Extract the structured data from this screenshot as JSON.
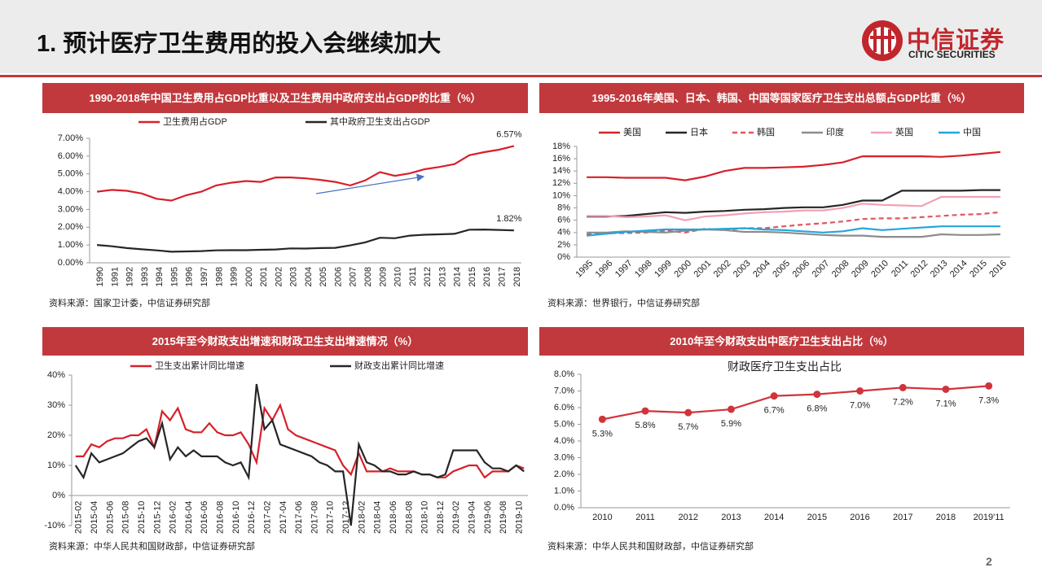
{
  "header": {
    "title": "1. 预计医疗卫生费用的投入会继续加大",
    "logo_cn": "中信证券",
    "logo_en": "CITIC SECURITIES"
  },
  "page_number": 2,
  "chart_data": [
    {
      "type": "line",
      "title": "1990-2018年中国卫生费用占GDP比重以及卫生费用中政府支出占GDP的比重（%）",
      "source": "资料来源：国家卫计委，中信证券研究部",
      "categories": [
        "1990",
        "1991",
        "1992",
        "1993",
        "1994",
        "1995",
        "1996",
        "1997",
        "1998",
        "1999",
        "2000",
        "2001",
        "2002",
        "2003",
        "2004",
        "2005",
        "2006",
        "2007",
        "2008",
        "2009",
        "2010",
        "2011",
        "2012",
        "2013",
        "2014",
        "2015",
        "2016",
        "2017",
        "2018"
      ],
      "series": [
        {
          "name": "卫生费用占GDP",
          "color": "#d7202a",
          "values": [
            4.0,
            4.1,
            4.05,
            3.9,
            3.6,
            3.5,
            3.8,
            4.0,
            4.35,
            4.5,
            4.6,
            4.55,
            4.8,
            4.8,
            4.75,
            4.66,
            4.55,
            4.35,
            4.63,
            5.1,
            4.89,
            5.03,
            5.26,
            5.39,
            5.55,
            6.05,
            6.22,
            6.36,
            6.57
          ],
          "value_labels": [
            null,
            null,
            null,
            null,
            null,
            null,
            null,
            null,
            null,
            null,
            null,
            null,
            null,
            null,
            null,
            null,
            null,
            null,
            null,
            null,
            null,
            null,
            null,
            null,
            null,
            null,
            null,
            null,
            "6.57%"
          ]
        },
        {
          "name": "其中政府卫生支出占GDP",
          "color": "#262626",
          "values": [
            1.0,
            0.93,
            0.83,
            0.76,
            0.7,
            0.62,
            0.64,
            0.66,
            0.7,
            0.71,
            0.71,
            0.73,
            0.75,
            0.81,
            0.8,
            0.83,
            0.84,
            0.98,
            1.15,
            1.41,
            1.38,
            1.53,
            1.58,
            1.6,
            1.63,
            1.86,
            1.87,
            1.85,
            1.82
          ],
          "value_labels": [
            null,
            null,
            null,
            null,
            null,
            null,
            null,
            null,
            null,
            null,
            null,
            null,
            null,
            null,
            null,
            null,
            null,
            null,
            null,
            null,
            null,
            null,
            null,
            null,
            null,
            null,
            null,
            null,
            "1.82%"
          ]
        }
      ],
      "ylim": [
        0,
        7
      ],
      "yticks": [
        {
          "value": 0,
          "label": "0.00%"
        },
        {
          "value": 1,
          "label": "1.00%"
        },
        {
          "value": 2,
          "label": "2.00%"
        },
        {
          "value": 3,
          "label": "3.00%"
        },
        {
          "value": 4,
          "label": "4.00%"
        },
        {
          "value": 5,
          "label": "5.00%"
        },
        {
          "value": 6,
          "label": "6.00%"
        },
        {
          "value": 7,
          "label": "7.00%"
        }
      ]
    },
    {
      "type": "line",
      "title": "1995-2016年美国、日本、韩国、中国等国家医疗卫生支出总额占GDP比重（%）",
      "source": "资料来源：世界银行，中信证券研究部",
      "categories": [
        "1995",
        "1996",
        "1997",
        "1998",
        "1999",
        "2000",
        "2001",
        "2002",
        "2003",
        "2004",
        "2005",
        "2006",
        "2007",
        "2008",
        "2009",
        "2010",
        "2011",
        "2012",
        "2013",
        "2014",
        "2015",
        "2016"
      ],
      "series": [
        {
          "name": "美国",
          "color": "#d7202a",
          "values": [
            13.0,
            13.0,
            12.9,
            12.9,
            12.9,
            12.5,
            13.1,
            14.0,
            14.5,
            14.5,
            14.6,
            14.7,
            15.0,
            15.4,
            16.4,
            16.4,
            16.4,
            16.4,
            16.3,
            16.5,
            16.8,
            17.1
          ]
        },
        {
          "name": "日本",
          "color": "#262626",
          "values": [
            6.6,
            6.6,
            6.7,
            7.0,
            7.3,
            7.2,
            7.4,
            7.5,
            7.7,
            7.8,
            8.0,
            8.1,
            8.1,
            8.5,
            9.2,
            9.2,
            10.8,
            10.8,
            10.8,
            10.8,
            10.9,
            10.9
          ]
        },
        {
          "name": "韩国",
          "color": "#e0575c",
          "dash": true,
          "values": [
            3.7,
            3.9,
            3.9,
            4.0,
            4.3,
            4.0,
            4.6,
            4.4,
            4.7,
            4.7,
            5.0,
            5.3,
            5.5,
            5.8,
            6.2,
            6.3,
            6.3,
            6.5,
            6.7,
            6.9,
            7.0,
            7.3
          ]
        },
        {
          "name": "印度",
          "color": "#8c8c8c",
          "values": [
            4.0,
            4.0,
            4.2,
            4.1,
            4.0,
            4.3,
            4.5,
            4.4,
            4.1,
            4.1,
            4.0,
            3.8,
            3.6,
            3.5,
            3.5,
            3.3,
            3.3,
            3.3,
            3.7,
            3.6,
            3.6,
            3.7
          ]
        },
        {
          "name": "英国",
          "color": "#f2a0b3",
          "values": [
            6.7,
            6.7,
            6.5,
            6.6,
            6.8,
            6.0,
            6.6,
            6.8,
            7.1,
            7.3,
            7.4,
            7.6,
            7.6,
            8.0,
            8.7,
            8.5,
            8.4,
            8.3,
            9.8,
            9.8,
            9.8,
            9.8
          ]
        },
        {
          "name": "中国",
          "color": "#22a5dc",
          "values": [
            3.5,
            3.8,
            4.1,
            4.3,
            4.5,
            4.5,
            4.5,
            4.6,
            4.7,
            4.5,
            4.4,
            4.2,
            4.0,
            4.2,
            4.7,
            4.4,
            4.6,
            4.8,
            5.0,
            5.0,
            5.0,
            5.0
          ]
        }
      ],
      "ylim": [
        0,
        18
      ],
      "yticks": [
        {
          "value": 0,
          "label": "0%"
        },
        {
          "value": 2,
          "label": "2%"
        },
        {
          "value": 4,
          "label": "4%"
        },
        {
          "value": 6,
          "label": "6%"
        },
        {
          "value": 8,
          "label": "8%"
        },
        {
          "value": 10,
          "label": "10%"
        },
        {
          "value": 12,
          "label": "12%"
        },
        {
          "value": 14,
          "label": "14%"
        },
        {
          "value": 16,
          "label": "16%"
        },
        {
          "value": 18,
          "label": "18%"
        }
      ]
    },
    {
      "type": "line",
      "title": "2015年至今财政支出增速和财政卫生支出增速情况（%）",
      "source": "资料来源：中华人民共和国财政部，中信证券研究部",
      "categories": [
        "2015-02",
        null,
        "2015-04",
        null,
        "2015-06",
        null,
        "2015-08",
        null,
        "2015-10",
        null,
        "2015-12",
        null,
        "2016-02",
        null,
        "2016-04",
        null,
        "2016-06",
        null,
        "2016-08",
        null,
        "2016-10",
        null,
        "2016-12",
        null,
        "2017-02",
        null,
        "2017-04",
        null,
        "2017-06",
        null,
        "2017-08",
        null,
        "2017-10",
        null,
        "2017-12",
        null,
        "2018-02",
        null,
        "2018-04",
        null,
        "2018-06",
        null,
        "2018-08",
        null,
        "2018-10",
        null,
        "2018-12",
        null,
        "2019-02",
        null,
        "2019-04",
        null,
        "2019-06",
        null,
        "2019-08",
        null,
        "2019-10",
        null
      ],
      "series": [
        {
          "name": "卫生支出累计同比增速",
          "color": "#d7202a",
          "values": [
            13,
            13,
            17,
            16,
            18,
            19,
            19,
            20,
            20,
            22,
            16,
            28,
            25,
            29,
            22,
            21,
            21,
            24,
            21,
            20,
            20,
            21,
            17,
            11,
            29,
            25,
            30,
            22,
            20,
            19,
            18,
            17,
            16,
            15,
            10,
            7,
            14,
            8,
            8,
            8,
            9,
            8,
            8,
            8,
            7,
            7,
            6,
            6,
            8,
            9,
            10,
            10,
            6,
            8,
            8,
            8,
            10,
            9
          ]
        },
        {
          "name": "财政支出累计同比增速",
          "color": "#262626",
          "values": [
            10,
            6,
            14,
            11,
            12,
            13,
            14,
            16,
            18,
            19,
            16,
            24,
            12,
            16,
            13,
            15,
            13,
            13,
            13,
            11,
            10,
            11,
            6,
            37,
            22,
            25,
            17,
            16,
            15,
            14,
            13,
            11,
            10,
            8,
            8,
            -10,
            17,
            11,
            10,
            8,
            8,
            7,
            7,
            8,
            7,
            7,
            6,
            7,
            15,
            15,
            15,
            15,
            11,
            9,
            9,
            8,
            10,
            8
          ]
        }
      ],
      "ylim": [
        -10,
        40
      ],
      "yticks": [
        {
          "value": -10,
          "label": "-10%"
        },
        {
          "value": 0,
          "label": "0%"
        },
        {
          "value": 10,
          "label": "10%"
        },
        {
          "value": 20,
          "label": "20%"
        },
        {
          "value": 30,
          "label": "30%"
        },
        {
          "value": 40,
          "label": "40%"
        }
      ]
    },
    {
      "type": "line",
      "title": "2010年至今财政支出中医疗卫生支出占比（%）",
      "markers": true,
      "source": "资料来源：中华人民共和国财政部，中信证券研究部",
      "categories": [
        "2010",
        "2011",
        "2012",
        "2013",
        "2014",
        "2015",
        "2016",
        "2017",
        "2018",
        "2019'11"
      ],
      "series": [
        {
          "name": "财政医疗卫生支出占比",
          "color": "#d0343a",
          "values": [
            5.3,
            5.8,
            5.7,
            5.9,
            6.7,
            6.8,
            7.0,
            7.2,
            7.1,
            7.3
          ],
          "value_labels": [
            "5.3%",
            "5.8%",
            "5.7%",
            "5.9%",
            "6.7%",
            "6.8%",
            "7.0%",
            "7.2%",
            "7.1%",
            "7.3%"
          ]
        }
      ],
      "ylim": [
        0,
        8
      ],
      "yticks": [
        {
          "value": 0,
          "label": "0.0%"
        },
        {
          "value": 1,
          "label": "1.0%"
        },
        {
          "value": 2,
          "label": "2.0%"
        },
        {
          "value": 3,
          "label": "3.0%"
        },
        {
          "value": 4,
          "label": "4.0%"
        },
        {
          "value": 5,
          "label": "5.0%"
        },
        {
          "value": 6,
          "label": "6.0%"
        },
        {
          "value": 7,
          "label": "7.0%"
        },
        {
          "value": 8,
          "label": "8.0%"
        }
      ]
    }
  ]
}
